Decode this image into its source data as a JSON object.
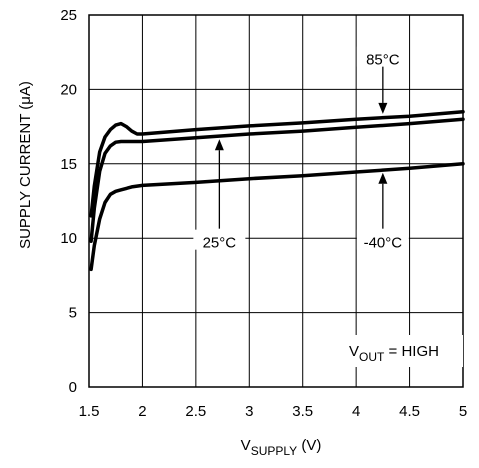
{
  "chart_data": {
    "type": "line",
    "xlabel": {
      "main": "V",
      "sub": "SUPPLY",
      "suffix": " (V)"
    },
    "ylabel": "SUPPLY CURRENT (μA)",
    "xlim": [
      1.5,
      5
    ],
    "ylim": [
      0,
      25
    ],
    "xticks": [
      1.5,
      2,
      2.5,
      3,
      3.5,
      4,
      4.5,
      5
    ],
    "xtick_labels": [
      "1.5",
      "2",
      "2.5",
      "3",
      "3.5",
      "4",
      "4.5",
      "5"
    ],
    "yticks": [
      0,
      5,
      10,
      15,
      20,
      25
    ],
    "ytick_labels": [
      "0",
      "5",
      "10",
      "15",
      "20",
      "25"
    ],
    "grid": true,
    "series": [
      {
        "name": "85°C",
        "x": [
          1.52,
          1.55,
          1.6,
          1.65,
          1.7,
          1.75,
          1.8,
          1.85,
          1.9,
          1.95,
          2.0,
          2.5,
          3.0,
          3.5,
          4.0,
          4.5,
          5.0
        ],
        "y": [
          11.5,
          13.5,
          15.8,
          16.8,
          17.3,
          17.6,
          17.7,
          17.5,
          17.2,
          17.0,
          17.0,
          17.3,
          17.55,
          17.75,
          18.0,
          18.2,
          18.5
        ]
      },
      {
        "name": "25°C",
        "x": [
          1.52,
          1.55,
          1.6,
          1.65,
          1.7,
          1.75,
          1.8,
          1.85,
          1.9,
          1.95,
          2.0,
          2.5,
          3.0,
          3.5,
          4.0,
          4.5,
          5.0
        ],
        "y": [
          9.8,
          12.0,
          14.5,
          15.7,
          16.2,
          16.45,
          16.5,
          16.5,
          16.5,
          16.5,
          16.5,
          16.75,
          17.0,
          17.2,
          17.45,
          17.7,
          18.0
        ]
      },
      {
        "name": "-40°C",
        "x": [
          1.52,
          1.55,
          1.6,
          1.65,
          1.7,
          1.75,
          1.8,
          1.85,
          1.9,
          2.0,
          2.5,
          3.0,
          3.5,
          4.0,
          4.5,
          5.0
        ],
        "y": [
          7.9,
          9.5,
          11.3,
          12.4,
          12.95,
          13.15,
          13.25,
          13.35,
          13.45,
          13.55,
          13.75,
          14.0,
          14.2,
          14.45,
          14.7,
          15.0
        ]
      }
    ],
    "annotations": [
      {
        "label": "85°C",
        "text_x": 4.25,
        "text_y": 22.0,
        "arrow_to_x": 4.25,
        "arrow_to_y": 18.15
      },
      {
        "label": "25°C",
        "text_x": 2.72,
        "text_y": 9.7,
        "arrow_to_x": 2.72,
        "arrow_to_y": 16.85
      },
      {
        "label": "-40°C",
        "text_x": 4.25,
        "text_y": 9.7,
        "arrow_to_x": 4.25,
        "arrow_to_y": 14.6
      }
    ],
    "condition_label": {
      "main": "V",
      "sub": "OUT",
      "suffix": " = HIGH"
    }
  }
}
